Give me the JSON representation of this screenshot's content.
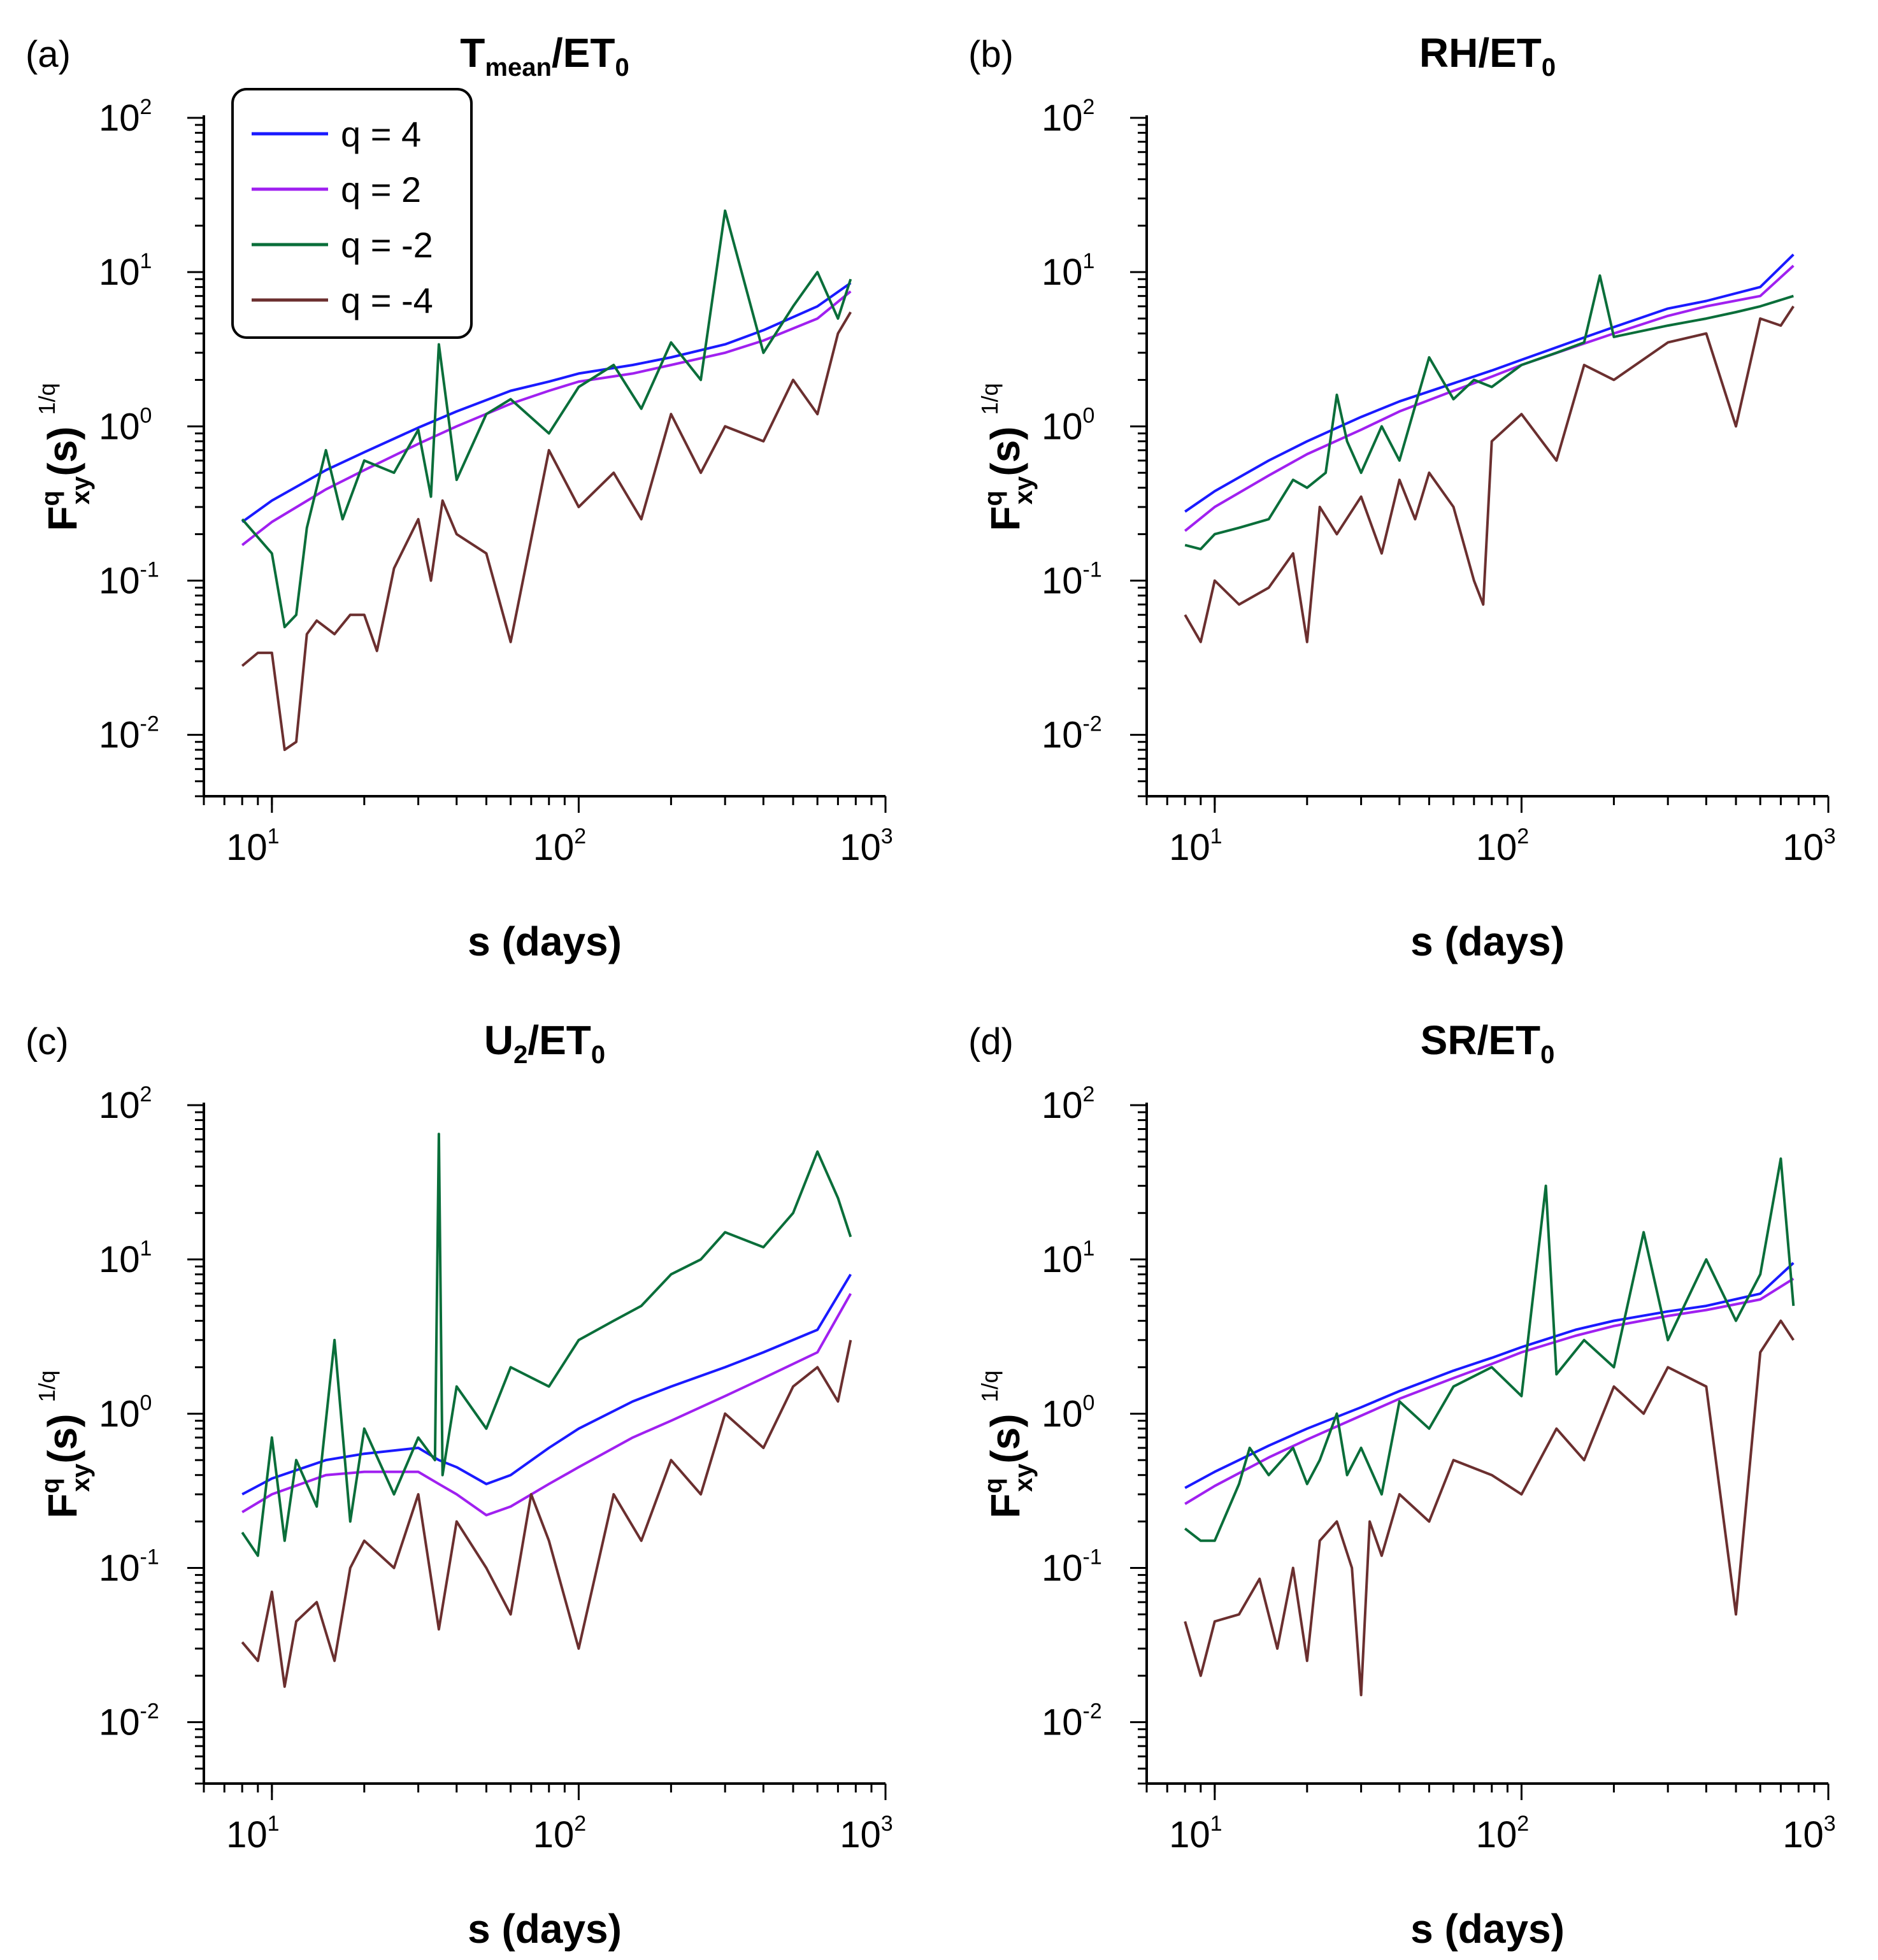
{
  "chart_data": [
    {
      "type": "line",
      "panel_label": "(a)",
      "title": {
        "main": "T",
        "sub": "mean",
        "rest": "/ET",
        "rest_sub": "0"
      },
      "xlabel": "s (days)",
      "ylabel": {
        "base": "F",
        "sup": "q",
        "sub": "xy",
        "rest": "(s)",
        "power": "1/q"
      },
      "xscale": "log",
      "yscale": "log",
      "xlim": [
        6,
        1000
      ],
      "ylim": [
        0.004,
        100
      ],
      "x_ticks": [
        {
          "base": "10",
          "exp": "1"
        },
        {
          "base": "10",
          "exp": "2"
        },
        {
          "base": "10",
          "exp": "3"
        }
      ],
      "y_ticks": [
        {
          "base": "10",
          "exp": "2"
        },
        {
          "base": "10",
          "exp": "1"
        },
        {
          "base": "10",
          "exp": "0"
        },
        {
          "base": "10",
          "exp": "-1"
        },
        {
          "base": "10",
          "exp": "-2"
        }
      ],
      "legend": {
        "position": "top-left",
        "entries": [
          "q = 4",
          "q = 2",
          "q = -2",
          "q = -4"
        ]
      },
      "series": [
        {
          "name": "q = 4",
          "color": "#1a1aff",
          "x": [
            8,
            10,
            15,
            20,
            30,
            40,
            60,
            80,
            100,
            150,
            200,
            300,
            400,
            600,
            770
          ],
          "y": [
            0.24,
            0.33,
            0.52,
            0.68,
            0.98,
            1.25,
            1.7,
            1.95,
            2.2,
            2.5,
            2.8,
            3.4,
            4.2,
            6.0,
            8.5
          ]
        },
        {
          "name": "q = 2",
          "color": "#a020f0",
          "x": [
            8,
            10,
            15,
            20,
            30,
            40,
            60,
            80,
            100,
            150,
            200,
            300,
            400,
            600,
            770
          ],
          "y": [
            0.17,
            0.24,
            0.39,
            0.52,
            0.77,
            1.0,
            1.4,
            1.7,
            1.95,
            2.2,
            2.5,
            3.0,
            3.6,
            5.0,
            7.5
          ]
        },
        {
          "name": "q = -2",
          "color": "#0a6e3a",
          "x": [
            8,
            10,
            11,
            12,
            13,
            15,
            17,
            20,
            25,
            30,
            33,
            35,
            40,
            50,
            60,
            80,
            100,
            130,
            160,
            200,
            250,
            300,
            400,
            500,
            600,
            700,
            770
          ],
          "y": [
            0.25,
            0.15,
            0.05,
            0.06,
            0.22,
            0.7,
            0.25,
            0.6,
            0.5,
            0.95,
            0.35,
            3.4,
            0.45,
            1.2,
            1.5,
            0.9,
            1.8,
            2.5,
            1.3,
            3.5,
            2.0,
            25,
            3.0,
            6.0,
            10,
            5.0,
            9.0
          ]
        },
        {
          "name": "q = -4",
          "color": "#6b2f2f",
          "x": [
            8,
            9,
            10,
            11,
            12,
            13,
            14,
            16,
            18,
            20,
            22,
            25,
            30,
            33,
            36,
            40,
            50,
            60,
            80,
            100,
            130,
            160,
            200,
            250,
            300,
            400,
            500,
            600,
            700,
            770
          ],
          "y": [
            0.028,
            0.034,
            0.034,
            0.008,
            0.009,
            0.045,
            0.055,
            0.045,
            0.06,
            0.06,
            0.035,
            0.12,
            0.25,
            0.1,
            0.33,
            0.2,
            0.15,
            0.04,
            0.7,
            0.3,
            0.5,
            0.25,
            1.2,
            0.5,
            1.0,
            0.8,
            2.0,
            1.2,
            4.0,
            5.5
          ]
        }
      ]
    },
    {
      "type": "line",
      "panel_label": "(b)",
      "title": {
        "main": "RH/ET",
        "sub": "0",
        "rest": "",
        "rest_sub": ""
      },
      "xlabel": "s (days)",
      "ylabel": {
        "base": "F",
        "sup": "q",
        "sub": "xy",
        "rest": "(s)",
        "power": "1/q"
      },
      "xscale": "log",
      "yscale": "log",
      "xlim": [
        6,
        1000
      ],
      "ylim": [
        0.004,
        100
      ],
      "x_ticks": [
        {
          "base": "10",
          "exp": "1"
        },
        {
          "base": "10",
          "exp": "2"
        },
        {
          "base": "10",
          "exp": "3"
        }
      ],
      "y_ticks": [
        {
          "base": "10",
          "exp": "2"
        },
        {
          "base": "10",
          "exp": "1"
        },
        {
          "base": "10",
          "exp": "0"
        },
        {
          "base": "10",
          "exp": "-1"
        },
        {
          "base": "10",
          "exp": "-2"
        }
      ],
      "series": [
        {
          "name": "q = 4",
          "color": "#1a1aff",
          "x": [
            8,
            10,
            15,
            20,
            30,
            40,
            60,
            80,
            100,
            150,
            200,
            300,
            400,
            600,
            770
          ],
          "y": [
            0.28,
            0.38,
            0.6,
            0.8,
            1.15,
            1.45,
            1.9,
            2.3,
            2.7,
            3.6,
            4.4,
            5.8,
            6.5,
            8.0,
            13
          ]
        },
        {
          "name": "q = 2",
          "color": "#a020f0",
          "x": [
            8,
            10,
            15,
            20,
            30,
            40,
            60,
            80,
            100,
            150,
            200,
            300,
            400,
            600,
            770
          ],
          "y": [
            0.21,
            0.3,
            0.48,
            0.66,
            0.95,
            1.25,
            1.7,
            2.1,
            2.5,
            3.3,
            4.0,
            5.2,
            6.0,
            7.0,
            11
          ]
        },
        {
          "name": "q = -2",
          "color": "#0a6e3a",
          "x": [
            8,
            9,
            10,
            12,
            15,
            18,
            20,
            23,
            25,
            27,
            30,
            35,
            40,
            50,
            60,
            70,
            80,
            100,
            130,
            160,
            180,
            200,
            300,
            400,
            500,
            600,
            770
          ],
          "y": [
            0.17,
            0.16,
            0.2,
            0.22,
            0.25,
            0.45,
            0.4,
            0.5,
            1.6,
            0.8,
            0.5,
            1.0,
            0.6,
            2.8,
            1.5,
            2.0,
            1.8,
            2.5,
            3.0,
            3.5,
            9.5,
            3.8,
            4.5,
            5.0,
            5.5,
            6.0,
            7.0
          ]
        },
        {
          "name": "q = -4",
          "color": "#6b2f2f",
          "x": [
            8,
            9,
            10,
            12,
            15,
            18,
            20,
            22,
            25,
            30,
            35,
            40,
            45,
            50,
            60,
            70,
            75,
            80,
            100,
            130,
            160,
            200,
            300,
            400,
            500,
            600,
            700,
            770
          ],
          "y": [
            0.06,
            0.04,
            0.1,
            0.07,
            0.09,
            0.15,
            0.04,
            0.3,
            0.2,
            0.35,
            0.15,
            0.45,
            0.25,
            0.5,
            0.3,
            0.1,
            0.07,
            0.8,
            1.2,
            0.6,
            2.5,
            2.0,
            3.5,
            4.0,
            1.0,
            5.0,
            4.5,
            6.0
          ]
        }
      ]
    },
    {
      "type": "line",
      "panel_label": "(c)",
      "title": {
        "main": "U",
        "sub": "2",
        "rest": "/ET",
        "rest_sub": "0"
      },
      "xlabel": "s (days)",
      "ylabel": {
        "base": "F",
        "sup": "q",
        "sub": "xy",
        "rest": "(s)",
        "power": "1/q"
      },
      "xscale": "log",
      "yscale": "log",
      "xlim": [
        6,
        1000
      ],
      "ylim": [
        0.004,
        100
      ],
      "x_ticks": [
        {
          "base": "10",
          "exp": "1"
        },
        {
          "base": "10",
          "exp": "2"
        },
        {
          "base": "10",
          "exp": "3"
        }
      ],
      "y_ticks": [
        {
          "base": "10",
          "exp": "2"
        },
        {
          "base": "10",
          "exp": "1"
        },
        {
          "base": "10",
          "exp": "0"
        },
        {
          "base": "10",
          "exp": "-1"
        },
        {
          "base": "10",
          "exp": "-2"
        }
      ],
      "series": [
        {
          "name": "q = 4",
          "color": "#1a1aff",
          "x": [
            8,
            10,
            15,
            20,
            30,
            35,
            40,
            50,
            60,
            80,
            100,
            150,
            200,
            300,
            400,
            600,
            770
          ],
          "y": [
            0.3,
            0.38,
            0.5,
            0.55,
            0.6,
            0.5,
            0.45,
            0.35,
            0.4,
            0.6,
            0.8,
            1.2,
            1.5,
            2.0,
            2.5,
            3.5,
            8.0
          ]
        },
        {
          "name": "q = 2",
          "color": "#a020f0",
          "x": [
            8,
            10,
            15,
            20,
            30,
            35,
            40,
            50,
            60,
            80,
            100,
            150,
            200,
            300,
            400,
            600,
            770
          ],
          "y": [
            0.23,
            0.3,
            0.4,
            0.42,
            0.42,
            0.35,
            0.3,
            0.22,
            0.25,
            0.35,
            0.45,
            0.7,
            0.9,
            1.3,
            1.7,
            2.5,
            6.0
          ]
        },
        {
          "name": "q = -2",
          "color": "#0a6e3a",
          "x": [
            8,
            9,
            10,
            11,
            12,
            14,
            16,
            18,
            20,
            25,
            30,
            34,
            35,
            36,
            40,
            50,
            60,
            80,
            100,
            130,
            160,
            200,
            250,
            300,
            400,
            500,
            600,
            700,
            770
          ],
          "y": [
            0.17,
            0.12,
            0.7,
            0.15,
            0.5,
            0.25,
            3.0,
            0.2,
            0.8,
            0.3,
            0.7,
            0.5,
            65,
            0.4,
            1.5,
            0.8,
            2.0,
            1.5,
            3.0,
            4.0,
            5.0,
            8.0,
            10,
            15,
            12,
            20,
            50,
            25,
            14
          ]
        },
        {
          "name": "q = -4",
          "color": "#6b2f2f",
          "x": [
            8,
            9,
            10,
            11,
            12,
            14,
            16,
            18,
            20,
            25,
            30,
            35,
            40,
            50,
            60,
            70,
            80,
            100,
            130,
            160,
            200,
            250,
            300,
            400,
            500,
            600,
            700,
            770
          ],
          "y": [
            0.033,
            0.025,
            0.07,
            0.017,
            0.045,
            0.06,
            0.025,
            0.1,
            0.15,
            0.1,
            0.3,
            0.04,
            0.2,
            0.1,
            0.05,
            0.3,
            0.15,
            0.03,
            0.3,
            0.15,
            0.5,
            0.3,
            1.0,
            0.6,
            1.5,
            2.0,
            1.2,
            3.0
          ]
        }
      ]
    },
    {
      "type": "line",
      "panel_label": "(d)",
      "title": {
        "main": "SR/ET",
        "sub": "0",
        "rest": "",
        "rest_sub": ""
      },
      "xlabel": "s (days)",
      "ylabel": {
        "base": "F",
        "sup": "q",
        "sub": "xy",
        "rest": "(s)",
        "power": "1/q"
      },
      "xscale": "log",
      "yscale": "log",
      "xlim": [
        6,
        1000
      ],
      "ylim": [
        0.004,
        100
      ],
      "x_ticks": [
        {
          "base": "10",
          "exp": "1"
        },
        {
          "base": "10",
          "exp": "2"
        },
        {
          "base": "10",
          "exp": "3"
        }
      ],
      "y_ticks": [
        {
          "base": "10",
          "exp": "2"
        },
        {
          "base": "10",
          "exp": "1"
        },
        {
          "base": "10",
          "exp": "0"
        },
        {
          "base": "10",
          "exp": "-1"
        },
        {
          "base": "10",
          "exp": "-2"
        }
      ],
      "series": [
        {
          "name": "q = 4",
          "color": "#1a1aff",
          "x": [
            8,
            10,
            15,
            20,
            30,
            40,
            60,
            80,
            100,
            150,
            200,
            300,
            400,
            600,
            770
          ],
          "y": [
            0.33,
            0.42,
            0.62,
            0.8,
            1.1,
            1.4,
            1.9,
            2.3,
            2.7,
            3.5,
            4.0,
            4.6,
            5.0,
            6.0,
            9.5
          ]
        },
        {
          "name": "q = 2",
          "color": "#a020f0",
          "x": [
            8,
            10,
            15,
            20,
            30,
            40,
            60,
            80,
            100,
            150,
            200,
            300,
            400,
            600,
            770
          ],
          "y": [
            0.26,
            0.34,
            0.52,
            0.68,
            0.97,
            1.25,
            1.7,
            2.1,
            2.5,
            3.2,
            3.7,
            4.3,
            4.7,
            5.5,
            7.5
          ]
        },
        {
          "name": "q = -2",
          "color": "#0a6e3a",
          "x": [
            8,
            9,
            10,
            12,
            13,
            15,
            18,
            20,
            22,
            25,
            27,
            30,
            35,
            40,
            50,
            60,
            80,
            100,
            120,
            130,
            160,
            200,
            250,
            300,
            400,
            500,
            600,
            700,
            770
          ],
          "y": [
            0.18,
            0.15,
            0.15,
            0.35,
            0.6,
            0.4,
            0.6,
            0.35,
            0.5,
            1.0,
            0.4,
            0.6,
            0.3,
            1.2,
            0.8,
            1.5,
            2.0,
            1.3,
            30,
            1.8,
            3.0,
            2.0,
            15,
            3.0,
            10,
            4.0,
            8.0,
            45,
            5.0
          ]
        },
        {
          "name": "q = -4",
          "color": "#6b2f2f",
          "x": [
            8,
            9,
            10,
            12,
            14,
            16,
            18,
            20,
            22,
            25,
            28,
            30,
            32,
            35,
            40,
            50,
            60,
            80,
            100,
            130,
            160,
            200,
            250,
            300,
            400,
            500,
            600,
            700,
            770
          ],
          "y": [
            0.045,
            0.02,
            0.045,
            0.05,
            0.085,
            0.03,
            0.1,
            0.025,
            0.15,
            0.2,
            0.1,
            0.015,
            0.2,
            0.12,
            0.3,
            0.2,
            0.5,
            0.4,
            0.3,
            0.8,
            0.5,
            1.5,
            1.0,
            2.0,
            1.5,
            0.05,
            2.5,
            4.0,
            3.0
          ]
        }
      ]
    }
  ]
}
